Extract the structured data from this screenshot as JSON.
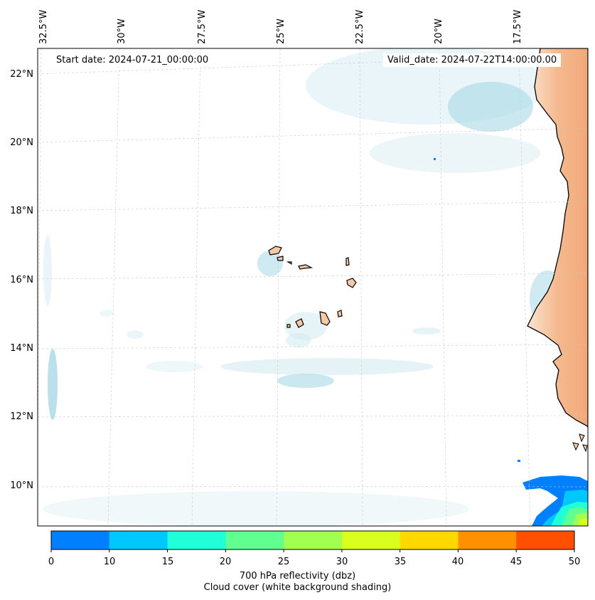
{
  "header": {
    "start_date": "Start date: 2024-07-21_00:00:00",
    "valid_date": "Valid_date: 2024-07-22T14:00:00.00"
  },
  "map": {
    "lon_labels": [
      "32.5°W",
      "30°W",
      "27.5°W",
      "25°W",
      "22.5°W",
      "20°W",
      "17.5°W"
    ],
    "lat_labels": [
      "22°N",
      "20°N",
      "18°N",
      "16°N",
      "14°N",
      "12°N",
      "10°N"
    ],
    "land_color": "#f6c9a6",
    "coast_color": "#000000"
  },
  "colorbar": {
    "ticks": [
      "0",
      "10",
      "15",
      "20",
      "25",
      "30",
      "35",
      "40",
      "45",
      "50"
    ],
    "colors": [
      "#0080ff",
      "#00c8ff",
      "#20ffd8",
      "#60ff90",
      "#a0ff50",
      "#d8ff20",
      "#ffd800",
      "#ff9000",
      "#ff5000"
    ],
    "label_line1": "700 hPa reflectivity (dbz)",
    "label_line2": "Cloud cover (white background shading)"
  }
}
